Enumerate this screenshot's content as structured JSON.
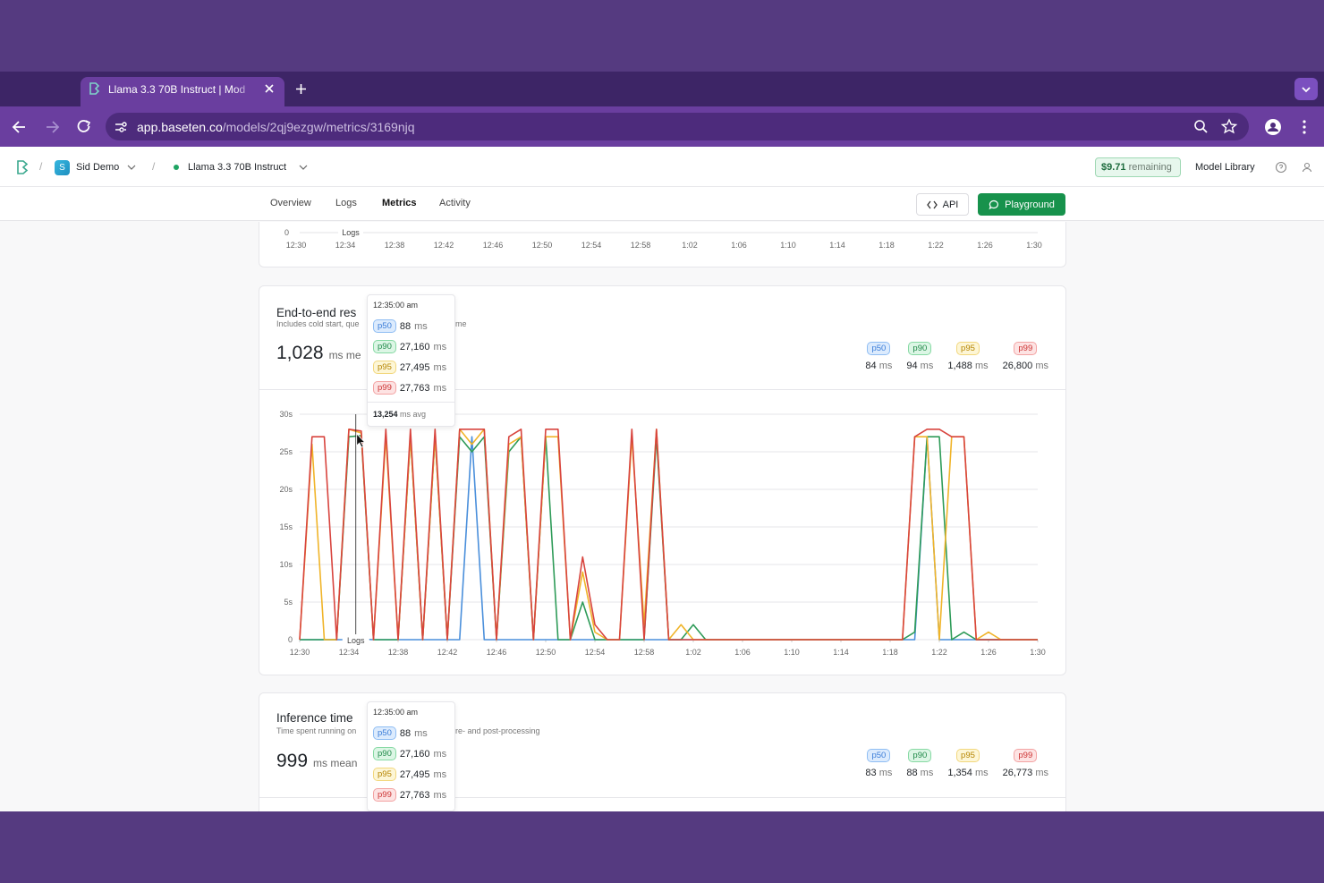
{
  "browser": {
    "tab_title": "Llama 3.3 70B Instruct | Mod",
    "url_host": "app.baseten.co",
    "url_path": "/models/2qj9ezgw/metrics/3169njq"
  },
  "header": {
    "workspace_initial": "S",
    "workspace": "Sid Demo",
    "model": "Llama 3.3 70B Instruct",
    "credit_amount": "$9.71",
    "credit_label": "remaining",
    "model_library": "Model Library"
  },
  "nav": {
    "tabs": [
      "Overview",
      "Logs",
      "Metrics",
      "Activity"
    ],
    "api": "API",
    "playground": "Playground"
  },
  "top_chart": {
    "ytick": "0",
    "marker": "Logs",
    "xtick_labels": [
      "12:30",
      "12:34",
      "12:38",
      "12:42",
      "12:46",
      "12:50",
      "12:54",
      "12:58",
      "1:02",
      "1:06",
      "1:10",
      "1:14",
      "1:18",
      "1:22",
      "1:26",
      "1:30"
    ]
  },
  "cards": [
    {
      "title": "End-to-end res",
      "subtitle": "Includes cold start, que",
      "subtitle_tail": "me",
      "mean_value": "1,028",
      "mean_unit": "ms me",
      "stats": [
        {
          "label": "p50",
          "value": "84",
          "unit": "ms"
        },
        {
          "label": "p90",
          "value": "94",
          "unit": "ms"
        },
        {
          "label": "p95",
          "value": "1,488",
          "unit": "ms"
        },
        {
          "label": "p99",
          "value": "26,800",
          "unit": "ms"
        }
      ],
      "tooltip": {
        "time": "12:35:00 am",
        "rows": [
          {
            "label": "p50",
            "value": "88",
            "unit": "ms"
          },
          {
            "label": "p90",
            "value": "27,160",
            "unit": "ms"
          },
          {
            "label": "p95",
            "value": "27,495",
            "unit": "ms"
          },
          {
            "label": "p99",
            "value": "27,763",
            "unit": "ms"
          }
        ],
        "avg_value": "13,254",
        "avg_unit": "ms avg"
      }
    },
    {
      "title": "Inference time",
      "subtitle": "Time spent running on",
      "subtitle_tail": "re- and post-processing",
      "mean_value": "999",
      "mean_unit": "ms mean",
      "stats": [
        {
          "label": "p50",
          "value": "83",
          "unit": "ms"
        },
        {
          "label": "p90",
          "value": "88",
          "unit": "ms"
        },
        {
          "label": "p95",
          "value": "1,354",
          "unit": "ms"
        },
        {
          "label": "p99",
          "value": "26,773",
          "unit": "ms"
        }
      ],
      "tooltip": {
        "time": "12:35:00 am",
        "rows": [
          {
            "label": "p50",
            "value": "88",
            "unit": "ms"
          },
          {
            "label": "p90",
            "value": "27,160",
            "unit": "ms"
          },
          {
            "label": "p95",
            "value": "27,495",
            "unit": "ms"
          },
          {
            "label": "p99",
            "value": "27,763",
            "unit": "ms"
          }
        ]
      }
    }
  ],
  "chart_data": {
    "type": "line",
    "annotation": "Logs",
    "x": [
      0,
      1,
      2,
      3,
      4,
      5,
      6,
      7,
      8,
      9,
      10,
      11,
      12,
      13,
      14,
      15,
      16,
      17,
      18,
      19,
      20,
      21,
      22,
      23,
      24,
      25,
      26,
      27,
      28,
      29,
      30,
      31,
      32,
      33,
      34,
      35,
      36,
      37,
      38,
      39,
      40,
      41,
      42,
      43,
      44,
      45,
      46,
      47,
      48,
      49,
      50,
      51,
      52,
      53,
      54,
      55,
      56,
      57,
      58,
      59,
      60
    ],
    "xlim": [
      0,
      60
    ],
    "xticks": [
      {
        "value": 0,
        "label": "12:30"
      },
      {
        "value": 4,
        "label": "12:34"
      },
      {
        "value": 8,
        "label": "12:38"
      },
      {
        "value": 12,
        "label": "12:42"
      },
      {
        "value": 16,
        "label": "12:46"
      },
      {
        "value": 20,
        "label": "12:50"
      },
      {
        "value": 24,
        "label": "12:54"
      },
      {
        "value": 28,
        "label": "12:58"
      },
      {
        "value": 32,
        "label": "1:02"
      },
      {
        "value": 36,
        "label": "1:06"
      },
      {
        "value": 40,
        "label": "1:10"
      },
      {
        "value": 44,
        "label": "1:14"
      },
      {
        "value": 48,
        "label": "1:18"
      },
      {
        "value": 52,
        "label": "1:22"
      },
      {
        "value": 56,
        "label": "1:26"
      },
      {
        "value": 60,
        "label": "1:30"
      }
    ],
    "ylim": [
      0,
      30
    ],
    "yticks": [
      0,
      {
        "value": 5,
        "label": "5s"
      },
      {
        "value": 10,
        "label": "10s"
      },
      {
        "value": 15,
        "label": "15s"
      },
      {
        "value": 20,
        "label": "20s"
      },
      {
        "value": 25,
        "label": "25s"
      },
      {
        "value": 30,
        "label": "30s"
      }
    ],
    "grid": true,
    "series": [
      {
        "name": "p50",
        "color": "#4a8fdb",
        "values": [
          0,
          0,
          0,
          0,
          0,
          0.088,
          0,
          0,
          0,
          0,
          0,
          0,
          0,
          0,
          27,
          0,
          0,
          0,
          0,
          0,
          0,
          0,
          0,
          0,
          0,
          0,
          0,
          0,
          0,
          0,
          0,
          0,
          0,
          0,
          0,
          0,
          0,
          0,
          0,
          0,
          0,
          0,
          0,
          0,
          0,
          0,
          0,
          0,
          0,
          0,
          0,
          27,
          0,
          0,
          0,
          0,
          0,
          0,
          0,
          0,
          0
        ]
      },
      {
        "name": "p90",
        "color": "#2e9b58",
        "values": [
          0,
          0,
          0,
          0,
          27,
          27.16,
          0,
          0,
          0,
          27,
          0,
          27,
          0,
          27,
          25,
          27,
          0,
          25,
          27,
          0,
          27,
          0,
          0,
          5,
          0,
          0,
          0,
          0,
          0,
          27,
          0,
          0,
          2,
          0,
          0,
          0,
          0,
          0,
          0,
          0,
          0,
          0,
          0,
          0,
          0,
          0,
          0,
          0,
          0,
          0,
          1,
          27,
          27,
          0,
          1,
          0,
          0,
          0,
          0,
          0,
          0
        ]
      },
      {
        "name": "p95",
        "color": "#f0b429",
        "values": [
          0,
          26,
          0,
          0,
          28,
          27.495,
          0,
          27,
          0,
          27,
          0,
          27,
          0,
          28,
          26,
          28,
          0,
          26,
          27,
          0,
          27,
          27,
          0,
          9,
          1,
          0,
          0,
          27,
          2,
          28,
          0,
          2,
          0,
          0,
          0,
          0,
          0,
          0,
          0,
          0,
          0,
          0,
          0,
          0,
          0,
          0,
          0,
          0,
          0,
          0,
          27,
          27,
          0,
          27,
          27,
          0,
          1,
          0,
          0,
          0,
          0
        ]
      },
      {
        "name": "p99",
        "color": "#d8443e",
        "values": [
          0,
          27,
          27,
          0,
          28,
          27.763,
          0,
          28,
          0,
          28,
          0,
          28,
          0,
          28,
          28,
          28,
          0,
          27,
          28,
          0,
          28,
          28,
          0,
          11,
          2,
          0,
          0,
          28,
          0,
          28,
          0,
          0,
          0,
          0,
          0,
          0,
          0,
          0,
          0,
          0,
          0,
          0,
          0,
          0,
          0,
          0,
          0,
          0,
          0,
          0,
          27,
          28,
          28,
          27,
          27,
          0,
          0,
          0,
          0,
          0,
          0
        ]
      }
    ]
  }
}
